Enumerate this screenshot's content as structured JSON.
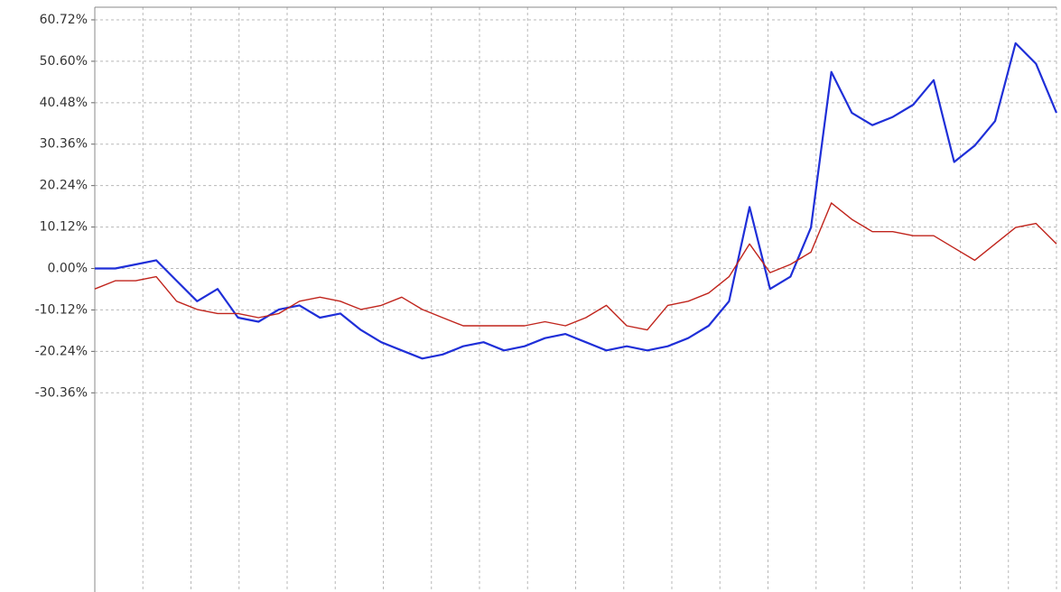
{
  "chart_data": {
    "type": "line",
    "categories": [
      null,
      null,
      null,
      null,
      null,
      null,
      null,
      null,
      null,
      null,
      null,
      null,
      null,
      null,
      null,
      null,
      null,
      null,
      null,
      null,
      null,
      null,
      null,
      null,
      null,
      null,
      null,
      null,
      null,
      null,
      null,
      null,
      null,
      null,
      null,
      null,
      null,
      null,
      null,
      null,
      null,
      null,
      null,
      null,
      null,
      null,
      null,
      null
    ],
    "series": [
      {
        "color": "#1f2fd8",
        "values": [
          0,
          0,
          1,
          2,
          -3,
          -8,
          -5,
          -12,
          -13,
          -10,
          -9,
          -12,
          -11,
          -15,
          -18,
          -20,
          -22,
          -21,
          -19,
          -18,
          -20,
          -19,
          -17,
          -16,
          -18,
          -20,
          -19,
          -20,
          -19,
          -17,
          -14,
          -8,
          15,
          -5,
          -2,
          10,
          48,
          38,
          35,
          37,
          40,
          46,
          26,
          30,
          36,
          55,
          50,
          38
        ]
      },
      {
        "color": "#c0241c",
        "values": [
          -5,
          -3,
          -3,
          -2,
          -8,
          -10,
          -11,
          -11,
          -12,
          -11,
          -8,
          -7,
          -8,
          -10,
          -9,
          -7,
          -10,
          -12,
          -14,
          -14,
          -14,
          -14,
          -13,
          -14,
          -12,
          -9,
          -14,
          -15,
          -9,
          -8,
          -6,
          -2,
          6,
          -1,
          1,
          4,
          16,
          12,
          9,
          9,
          8,
          8,
          5,
          2,
          6,
          10,
          11,
          6
        ]
      }
    ],
    "ylim": [
      -79,
      63.8
    ],
    "yticks": [
      {
        "value": 60.72,
        "label": "60.72%"
      },
      {
        "value": 50.6,
        "label": "50.60%"
      },
      {
        "value": 40.48,
        "label": "40.48%"
      },
      {
        "value": 30.36,
        "label": "30.36%"
      },
      {
        "value": 20.24,
        "label": "20.24%"
      },
      {
        "value": 10.12,
        "label": "10.12%"
      },
      {
        "value": 0,
        "label": "0.00%"
      },
      {
        "value": -10.12,
        "label": "-10.12%"
      },
      {
        "value": -20.24,
        "label": "-20.24%"
      },
      {
        "value": -30.36,
        "label": "-30.36%"
      }
    ],
    "grid": true
  }
}
